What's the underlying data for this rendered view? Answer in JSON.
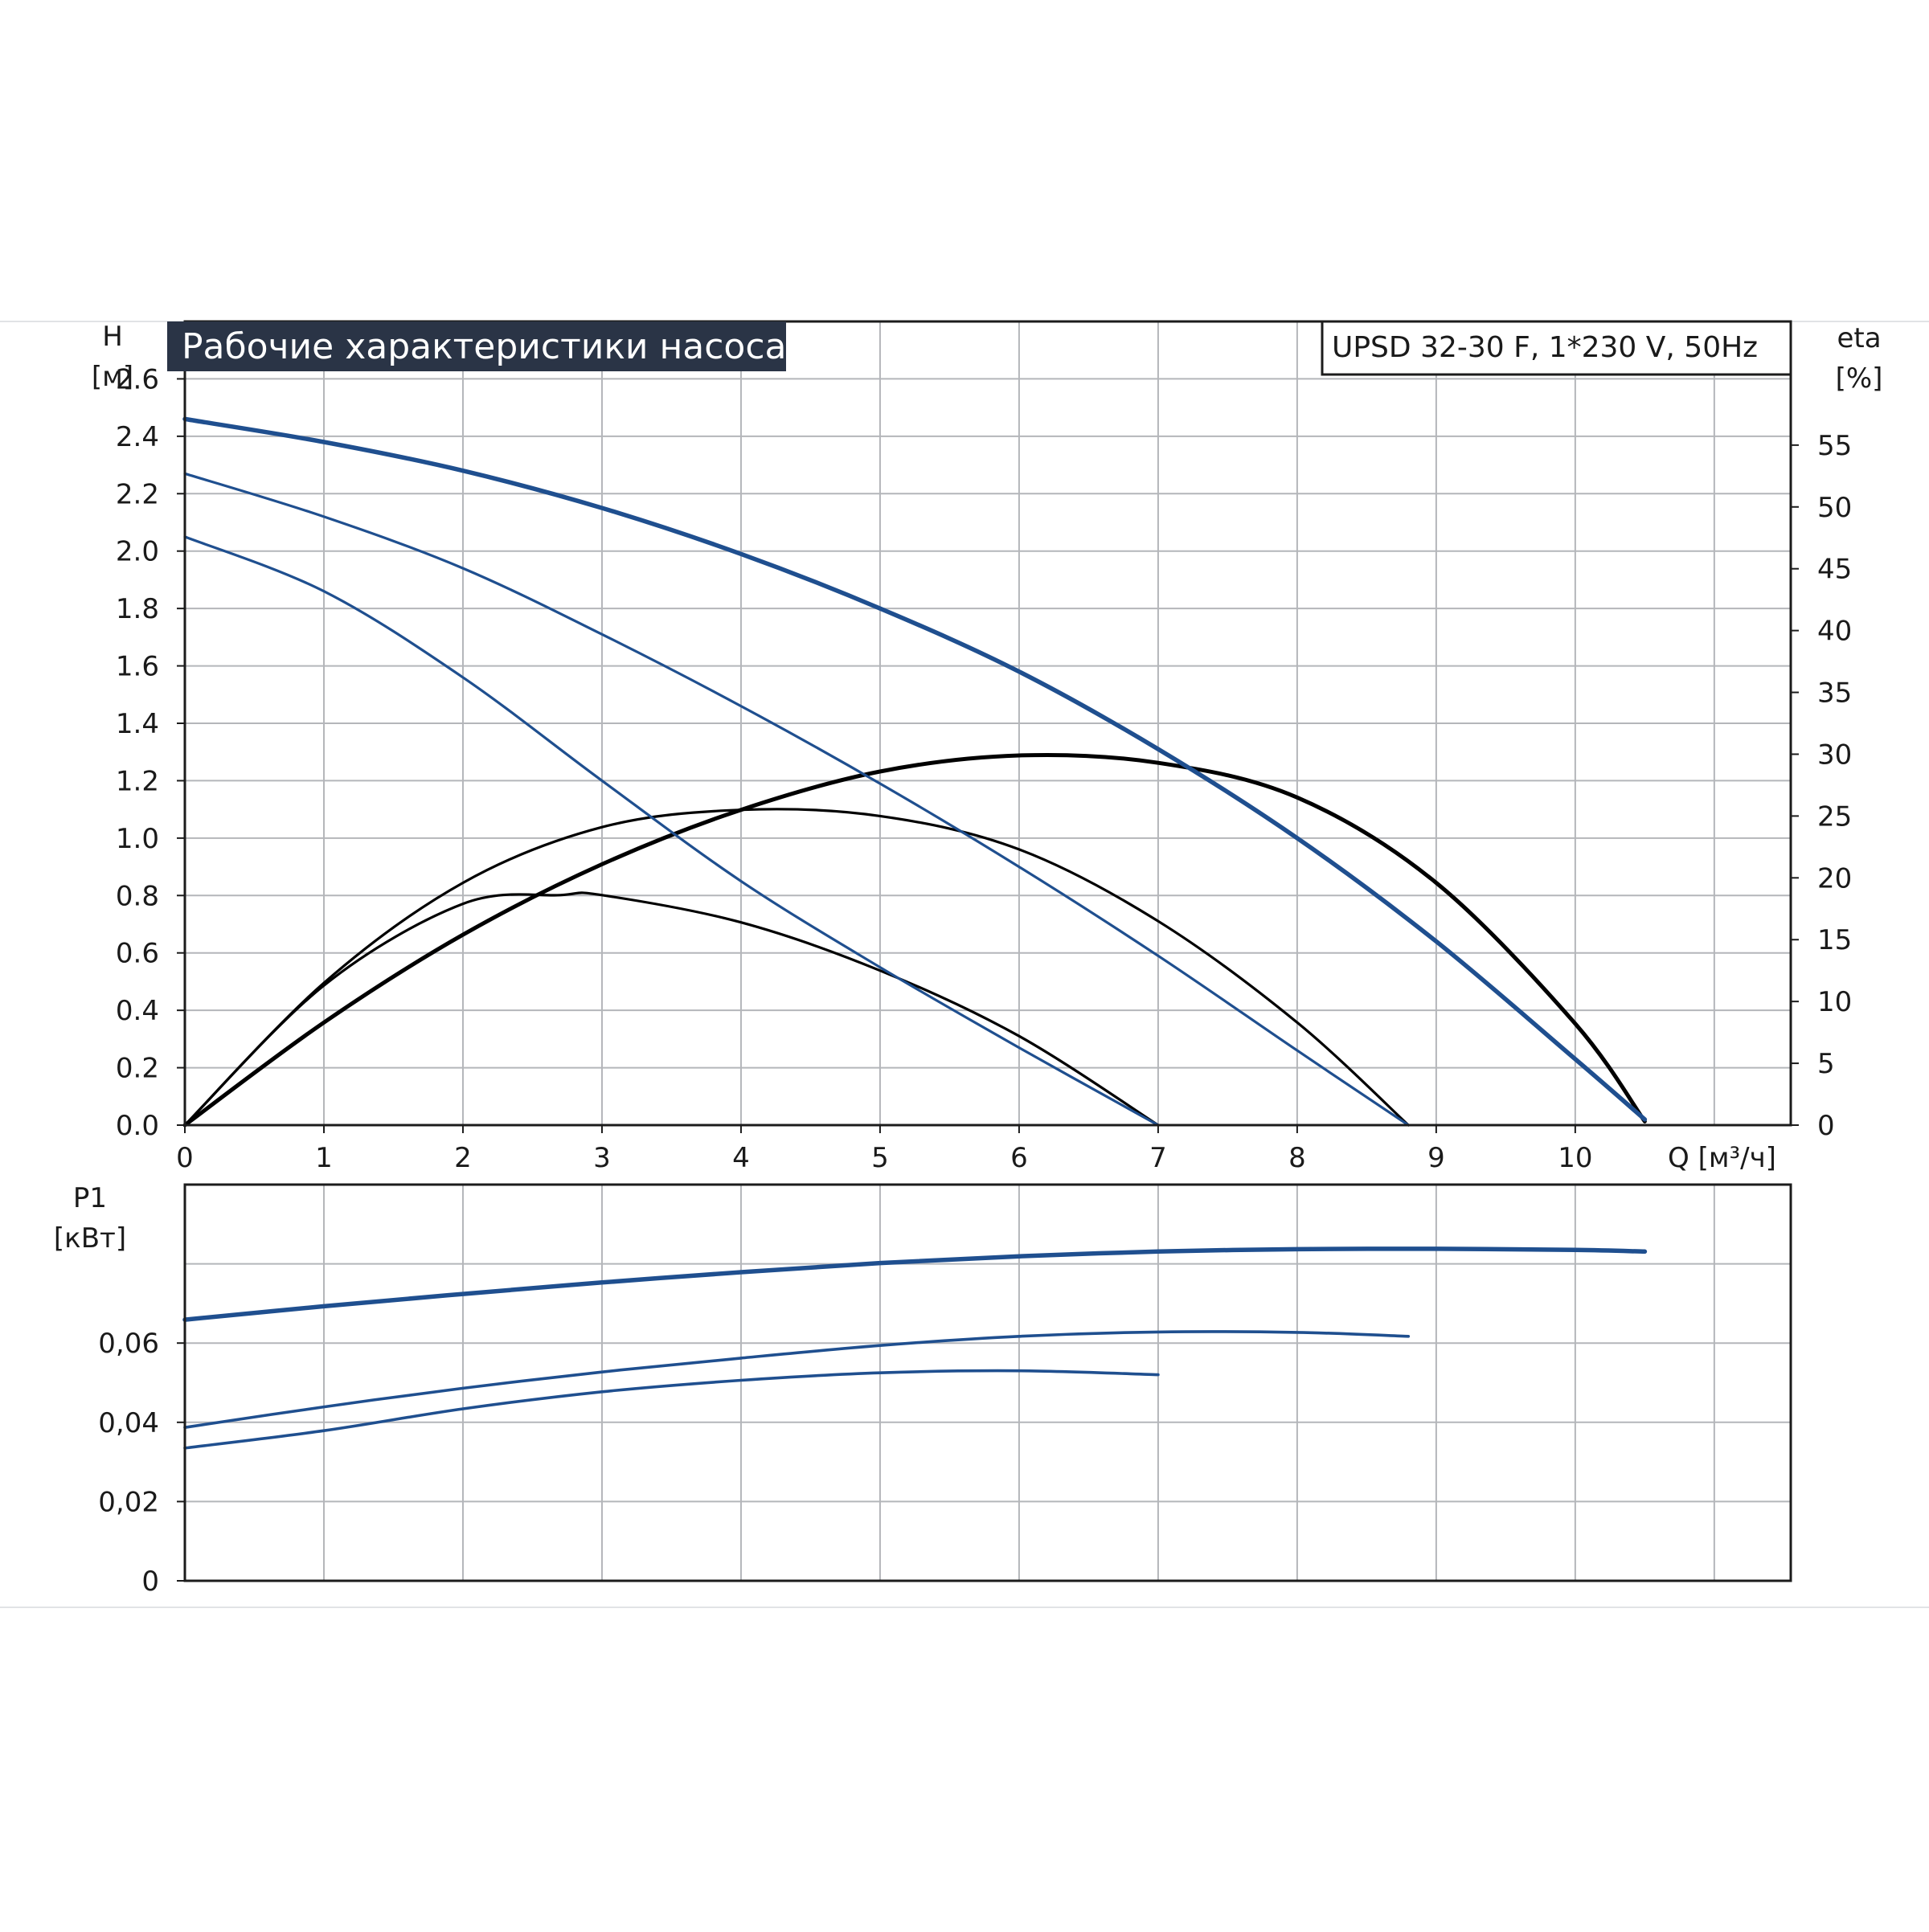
{
  "title": "Рабочие характеристики насоса",
  "model": "UPSD 32-30 F, 1*230 V, 50Hz",
  "colors": {
    "title_bg": "#2a3446",
    "title_text": "#ffffff",
    "head_curve": "#1f4f8f",
    "eta_curve": "#000000",
    "power_curve": "#1f4f8f",
    "grid": "#b4b6ba"
  },
  "chart_data": [
    {
      "type": "line",
      "name": "head-efficiency",
      "xlabel": "Q [м³/ч]",
      "ylabel": "H",
      "ylabel_unit": "[м]",
      "y2label": "eta",
      "y2label_unit": "[%]",
      "xlim": [
        0,
        11.55
      ],
      "ylim": [
        0,
        2.8
      ],
      "y2lim": [
        0,
        65
      ],
      "x_ticks": [
        "0",
        "1",
        "2",
        "3",
        "4",
        "5",
        "6",
        "7",
        "8",
        "9",
        "10"
      ],
      "y_ticks": [
        "0.0",
        "0.2",
        "0.4",
        "0.6",
        "0.8",
        "1.0",
        "1.2",
        "1.4",
        "1.6",
        "1.8",
        "2.0",
        "2.2",
        "2.4",
        "2.6"
      ],
      "y2_ticks": [
        "0",
        "5",
        "10",
        "15",
        "20",
        "25",
        "30",
        "35",
        "40",
        "45",
        "50",
        "55"
      ],
      "grid": true,
      "head_series": [
        {
          "x": [
            0,
            1,
            2,
            3,
            4,
            5,
            6,
            7,
            8,
            9,
            10,
            10.5
          ],
          "y": [
            2.46,
            2.38,
            2.28,
            2.15,
            1.99,
            1.8,
            1.58,
            1.31,
            1.0,
            0.64,
            0.23,
            0.02
          ]
        },
        {
          "x": [
            0,
            1,
            2,
            3,
            4,
            5,
            6,
            7,
            8,
            8.8
          ],
          "y": [
            2.27,
            2.12,
            1.94,
            1.71,
            1.46,
            1.19,
            0.9,
            0.59,
            0.26,
            0.0
          ]
        },
        {
          "x": [
            0,
            1,
            2,
            3,
            4,
            5,
            6,
            7
          ],
          "y": [
            2.05,
            1.86,
            1.56,
            1.2,
            0.85,
            0.55,
            0.27,
            0.0
          ]
        }
      ],
      "eta_series": [
        {
          "x": [
            0,
            1,
            2,
            3,
            4,
            5,
            6,
            7,
            8,
            9,
            10,
            10.5
          ],
          "y": [
            0,
            8.3,
            15.4,
            21.1,
            25.5,
            28.6,
            29.9,
            29.3,
            26.5,
            19.6,
            8.2,
            0.3
          ]
        },
        {
          "x": [
            0,
            1,
            2,
            3,
            4,
            5,
            6,
            7,
            8,
            8.8
          ],
          "y": [
            0,
            11.5,
            19.6,
            24.1,
            25.5,
            25.0,
            22.3,
            16.5,
            8.3,
            0.0
          ]
        },
        {
          "x": [
            0,
            1,
            2,
            2.7,
            3,
            4,
            5,
            6,
            7
          ],
          "y": [
            0,
            11.3,
            17.9,
            18.6,
            18.6,
            16.4,
            12.5,
            7.2,
            0.0
          ]
        }
      ]
    },
    {
      "type": "line",
      "name": "power",
      "xlabel": "",
      "ylabel": "P1",
      "ylabel_unit": "[кВт]",
      "xlim": [
        0,
        11.55
      ],
      "ylim": [
        0,
        0.1
      ],
      "y_ticks": [
        "0",
        "0,02",
        "0,04",
        "0,06"
      ],
      "grid": true,
      "series": [
        {
          "x": [
            0,
            1,
            2,
            3,
            4,
            5,
            6,
            7,
            8,
            9,
            10,
            10.5
          ],
          "y": [
            0.0659,
            0.0693,
            0.0724,
            0.0753,
            0.0779,
            0.0802,
            0.0819,
            0.0831,
            0.0837,
            0.0838,
            0.0835,
            0.0831
          ]
        },
        {
          "x": [
            0,
            1,
            2,
            3,
            4,
            5,
            6,
            7,
            8,
            8.8
          ],
          "y": [
            0.0387,
            0.0439,
            0.0486,
            0.0527,
            0.0562,
            0.0594,
            0.0617,
            0.0628,
            0.0627,
            0.0617
          ]
        },
        {
          "x": [
            0,
            1,
            2,
            3,
            4,
            5,
            6,
            7
          ],
          "y": [
            0.0335,
            0.0379,
            0.0434,
            0.0477,
            0.0506,
            0.0525,
            0.053,
            0.052
          ]
        }
      ]
    }
  ]
}
